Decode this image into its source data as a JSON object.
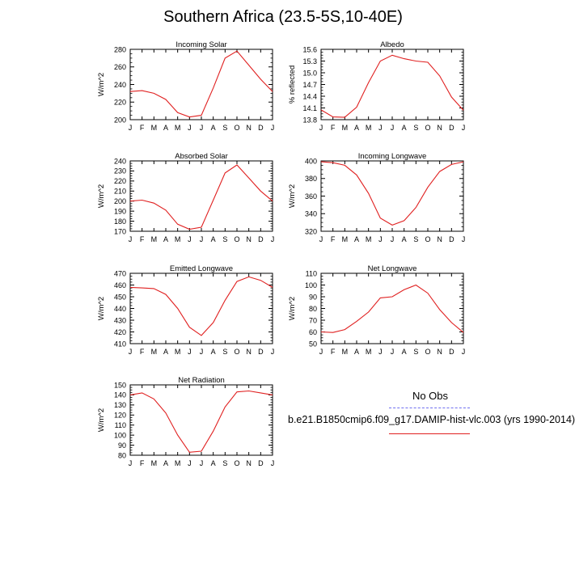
{
  "title": "Southern Africa (23.5-5S,10-40E)",
  "legend": {
    "obs_label": "No Obs",
    "model_label": "b.e21.B1850cmip6.f09_g17.DAMIP-hist-vlc.003 (yrs 1990-2014)",
    "obs_color": "#6f6ff0",
    "model_color": "#e02020"
  },
  "chart_data": [
    {
      "type": "line",
      "title": "Incoming Solar",
      "ylabel": "W/m^2",
      "categories": [
        "J",
        "F",
        "M",
        "A",
        "M",
        "J",
        "J",
        "A",
        "S",
        "O",
        "N",
        "D",
        "J"
      ],
      "ylim": [
        200,
        280
      ],
      "yticks": [
        200,
        220,
        240,
        260,
        280
      ],
      "values": [
        232,
        233,
        230,
        223,
        208,
        203,
        205,
        236,
        270,
        278,
        262,
        246,
        232
      ]
    },
    {
      "type": "line",
      "title": "Albedo",
      "ylabel": "% reflected",
      "categories": [
        "J",
        "F",
        "M",
        "A",
        "M",
        "J",
        "J",
        "A",
        "S",
        "O",
        "N",
        "D",
        "J"
      ],
      "ylim": [
        13.8,
        15.6
      ],
      "yticks": [
        13.8,
        14.1,
        14.4,
        14.7,
        15.0,
        15.3,
        15.6
      ],
      "values": [
        14.05,
        13.87,
        13.86,
        14.12,
        14.75,
        15.3,
        15.45,
        15.36,
        15.3,
        15.27,
        14.92,
        14.38,
        14.04
      ]
    },
    {
      "type": "line",
      "title": "Absorbed Solar",
      "ylabel": "W/m^2",
      "categories": [
        "J",
        "F",
        "M",
        "A",
        "M",
        "J",
        "J",
        "A",
        "S",
        "O",
        "N",
        "D",
        "J"
      ],
      "ylim": [
        170,
        240
      ],
      "yticks": [
        170,
        180,
        190,
        200,
        210,
        220,
        230,
        240
      ],
      "values": [
        200,
        201,
        198,
        191,
        177,
        172,
        174,
        201,
        228,
        236,
        223,
        210,
        200
      ]
    },
    {
      "type": "line",
      "title": "Incoming Longwave",
      "ylabel": "W/m^2",
      "categories": [
        "J",
        "F",
        "M",
        "A",
        "M",
        "J",
        "J",
        "A",
        "S",
        "O",
        "N",
        "D",
        "J"
      ],
      "ylim": [
        320,
        400
      ],
      "yticks": [
        320,
        340,
        360,
        380,
        400
      ],
      "values": [
        399,
        398,
        395,
        384,
        363,
        335,
        327,
        332,
        347,
        370,
        388,
        396,
        399
      ]
    },
    {
      "type": "line",
      "title": "Emitted Longwave",
      "ylabel": "W/m^2",
      "categories": [
        "J",
        "F",
        "M",
        "A",
        "M",
        "J",
        "J",
        "A",
        "S",
        "O",
        "N",
        "D",
        "J"
      ],
      "ylim": [
        410,
        470
      ],
      "yticks": [
        410,
        420,
        430,
        440,
        450,
        460,
        470
      ],
      "values": [
        458,
        457.5,
        457,
        452,
        440,
        424,
        417,
        428,
        447,
        463,
        467,
        464,
        458
      ]
    },
    {
      "type": "line",
      "title": "Net Longwave",
      "ylabel": "W/m^2",
      "categories": [
        "J",
        "F",
        "M",
        "A",
        "M",
        "J",
        "J",
        "A",
        "S",
        "O",
        "N",
        "D",
        "J"
      ],
      "ylim": [
        50,
        110
      ],
      "yticks": [
        50,
        60,
        70,
        80,
        90,
        100,
        110
      ],
      "values": [
        60,
        59.5,
        62,
        69,
        77,
        89,
        90,
        96,
        100,
        93,
        79,
        68,
        59.5
      ]
    },
    {
      "type": "line",
      "title": "Net Radiation",
      "ylabel": "W/m^2",
      "categories": [
        "J",
        "F",
        "M",
        "A",
        "M",
        "J",
        "J",
        "A",
        "S",
        "O",
        "N",
        "D",
        "J"
      ],
      "ylim": [
        80,
        150
      ],
      "yticks": [
        80,
        90,
        100,
        110,
        120,
        130,
        140,
        150
      ],
      "values": [
        140,
        142,
        136,
        122,
        100,
        83,
        84,
        104,
        128,
        143,
        144,
        142,
        140
      ]
    }
  ]
}
